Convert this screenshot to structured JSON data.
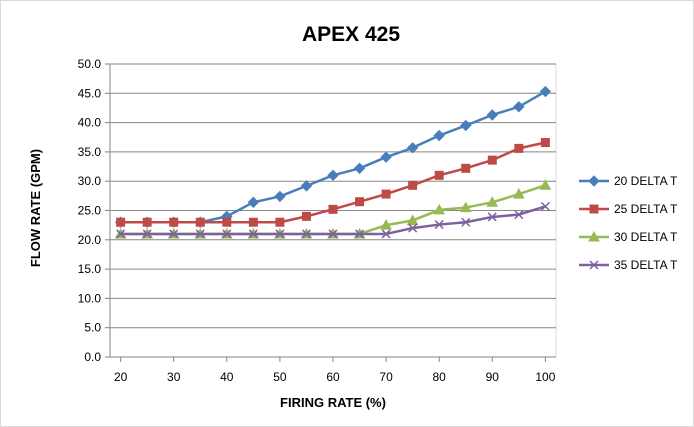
{
  "chart_data": {
    "type": "line",
    "title": "APEX 425",
    "xlabel": "FIRING RATE (%)",
    "ylabel": "FLOW RATE (GPM)",
    "x": [
      20,
      25,
      30,
      35,
      40,
      45,
      50,
      55,
      60,
      65,
      70,
      75,
      80,
      85,
      90,
      95,
      100
    ],
    "xticks": [
      "20",
      "30",
      "40",
      "50",
      "60",
      "70",
      "80",
      "90",
      "100"
    ],
    "yticks": [
      "0.0",
      "5.0",
      "10.0",
      "15.0",
      "20.0",
      "25.0",
      "30.0",
      "35.0",
      "40.0",
      "45.0",
      "50.0"
    ],
    "xlim": [
      18,
      102
    ],
    "ylim": [
      0,
      50
    ],
    "grid": "horizontal",
    "legend": "right",
    "series": [
      {
        "name": "20 DELTA T",
        "color": "#4a7ebb",
        "marker": "diamond",
        "values": [
          23.0,
          23.0,
          23.0,
          23.0,
          24.0,
          26.4,
          27.4,
          29.2,
          31.0,
          32.2,
          34.1,
          35.7,
          37.8,
          39.5,
          41.3,
          42.7,
          45.3
        ]
      },
      {
        "name": "25 DELTA T",
        "color": "#be4b48",
        "marker": "square",
        "values": [
          23.0,
          23.0,
          23.0,
          23.0,
          23.0,
          23.0,
          23.0,
          24.0,
          25.2,
          26.5,
          27.8,
          29.3,
          31.0,
          32.2,
          33.6,
          35.6,
          36.6
        ]
      },
      {
        "name": "30 DELTA T",
        "color": "#98b954",
        "marker": "triangle",
        "values": [
          21.0,
          21.0,
          21.0,
          21.0,
          21.0,
          21.0,
          21.0,
          21.0,
          21.0,
          21.0,
          22.5,
          23.3,
          25.1,
          25.5,
          26.4,
          27.8,
          29.3
        ]
      },
      {
        "name": "35 DELTA T",
        "color": "#7d60a0",
        "marker": "x",
        "values": [
          21.0,
          21.0,
          21.0,
          21.0,
          21.0,
          21.0,
          21.0,
          21.0,
          21.0,
          21.0,
          21.0,
          22.0,
          22.6,
          23.0,
          23.9,
          24.3,
          25.7
        ]
      }
    ]
  }
}
